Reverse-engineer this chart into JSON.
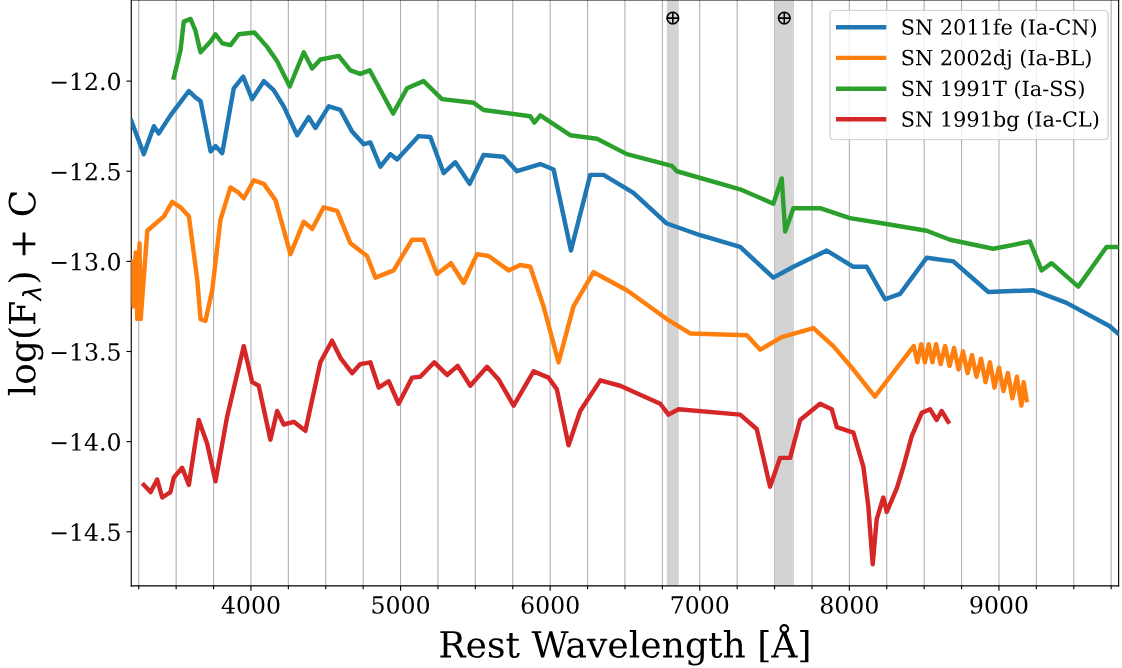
{
  "chart_data": {
    "type": "line",
    "xlabel": "Rest Wavelength [Å]",
    "ylabel": "log(F$_{λ}$) + C",
    "xlim": [
      3200,
      9800
    ],
    "ylim": [
      -14.8,
      -11.55
    ],
    "xticks": [
      {
        "value": 3250,
        "label": null
      },
      {
        "value": 3500,
        "label": null
      },
      {
        "value": 3750,
        "label": null
      },
      4000,
      {
        "value": 4250,
        "label": null
      },
      {
        "value": 4500,
        "label": null
      },
      {
        "value": 4750,
        "label": null
      },
      5000,
      {
        "value": 5250,
        "label": null
      },
      {
        "value": 5500,
        "label": null
      },
      {
        "value": 5750,
        "label": null
      },
      6000,
      {
        "value": 6250,
        "label": null
      },
      {
        "value": 6500,
        "label": null
      },
      {
        "value": 6750,
        "label": null
      },
      7000,
      {
        "value": 7250,
        "label": null
      },
      {
        "value": 7500,
        "label": null
      },
      {
        "value": 7750,
        "label": null
      },
      8000,
      {
        "value": 8250,
        "label": null
      },
      {
        "value": 8500,
        "label": null
      },
      {
        "value": 8750,
        "label": null
      },
      9000,
      {
        "value": 9250,
        "label": null
      },
      {
        "value": 9500,
        "label": null
      },
      {
        "value": 9750,
        "label": null
      }
    ],
    "yticks": [
      {
        "value": -12.0,
        "label": "−12.0"
      },
      {
        "value": -12.5,
        "label": "−12.5"
      },
      {
        "value": -13.0,
        "label": "−13.0"
      },
      {
        "value": -13.5,
        "label": "−13.5"
      },
      {
        "value": -14.0,
        "label": "−14.0"
      },
      {
        "value": -14.5,
        "label": "−14.5"
      }
    ],
    "grid": "x",
    "legend": "top right",
    "marker": "none",
    "line_style": "solid",
    "bands": [
      {
        "axis": "x",
        "from": 6780,
        "to": 6860,
        "label": "⊕",
        "color": "#d3d3d3"
      },
      {
        "axis": "x",
        "from": 7500,
        "to": 7630,
        "label": "⊕",
        "color": "#d3d3d3"
      }
    ],
    "series": [
      {
        "name": "SN 2011fe (Ia-CN)",
        "color": "#1f77b4",
        "x": [
          3200,
          3284,
          3351,
          3384,
          3462,
          3585,
          3629,
          3663,
          3730,
          3763,
          3808,
          3885,
          3948,
          4008,
          4086,
          4152,
          4219,
          4309,
          4386,
          4431,
          4520,
          4598,
          4676,
          4754,
          4798,
          4865,
          4932,
          4977,
          5121,
          5199,
          5288,
          5366,
          5462,
          5555,
          5689,
          5778,
          5934,
          6023,
          6139,
          6268,
          6357,
          6557,
          6780,
          7003,
          7270,
          7492,
          7626,
          7849,
          8027,
          8116,
          8239,
          8339,
          8517,
          8695,
          8929,
          9229,
          9452,
          9741,
          9795
        ],
        "values": [
          -12.22,
          -12.405,
          -12.25,
          -12.29,
          -12.19,
          -12.055,
          -12.09,
          -12.11,
          -12.39,
          -12.36,
          -12.4,
          -12.04,
          -11.975,
          -12.1,
          -12.0,
          -12.05,
          -12.14,
          -12.3,
          -12.2,
          -12.26,
          -12.14,
          -12.16,
          -12.28,
          -12.35,
          -12.34,
          -12.475,
          -12.405,
          -12.435,
          -12.305,
          -12.31,
          -12.51,
          -12.45,
          -12.57,
          -12.41,
          -12.42,
          -12.5,
          -12.46,
          -12.49,
          -12.94,
          -12.52,
          -12.52,
          -12.62,
          -12.79,
          -12.855,
          -12.92,
          -13.09,
          -13.03,
          -12.94,
          -13.03,
          -13.03,
          -13.21,
          -13.18,
          -12.98,
          -13.0,
          -13.17,
          -13.16,
          -13.23,
          -13.36,
          -13.4
        ]
      },
      {
        "name": "SN 2002dj (Ia-BL)",
        "color": "#ff7f0e",
        "x": [
          3200,
          3215,
          3230,
          3240,
          3255,
          3263,
          3307,
          3418,
          3474,
          3529,
          3585,
          3641,
          3663,
          3696,
          3741,
          3796,
          3863,
          3919,
          3952,
          4019,
          4086,
          4164,
          4264,
          4353,
          4409,
          4486,
          4576,
          4665,
          4776,
          4832,
          4954,
          5077,
          5154,
          5244,
          5337,
          5422,
          5511,
          5589,
          5722,
          5800,
          5867,
          5956,
          6056,
          6156,
          6290,
          6513,
          6780,
          6936,
          7315,
          7404,
          7548,
          7760,
          7893,
          8027,
          8171,
          8272,
          8430,
          8455,
          8480,
          8505,
          8530,
          8555,
          8580,
          8610,
          8640,
          8670,
          8700,
          8730,
          8760,
          8790,
          8820,
          8850,
          8880,
          8910,
          8940,
          8970,
          9000,
          9030,
          9060,
          9090,
          9120,
          9150,
          9165,
          9185
        ],
        "values": [
          -13.0,
          -13.25,
          -12.95,
          -13.32,
          -12.9,
          -13.32,
          -12.83,
          -12.75,
          -12.67,
          -12.7,
          -12.75,
          -13.1,
          -13.32,
          -13.33,
          -13.16,
          -12.77,
          -12.59,
          -12.62,
          -12.65,
          -12.55,
          -12.57,
          -12.66,
          -12.96,
          -12.78,
          -12.82,
          -12.7,
          -12.72,
          -12.9,
          -12.97,
          -13.09,
          -13.05,
          -12.88,
          -12.88,
          -13.07,
          -13.01,
          -13.12,
          -12.96,
          -12.97,
          -13.05,
          -13.02,
          -13.03,
          -13.25,
          -13.56,
          -13.25,
          -13.06,
          -13.16,
          -13.32,
          -13.4,
          -13.41,
          -13.49,
          -13.42,
          -13.37,
          -13.47,
          -13.6,
          -13.75,
          -13.64,
          -13.47,
          -13.56,
          -13.46,
          -13.56,
          -13.46,
          -13.56,
          -13.46,
          -13.57,
          -13.47,
          -13.58,
          -13.48,
          -13.6,
          -13.5,
          -13.62,
          -13.52,
          -13.64,
          -13.54,
          -13.67,
          -13.56,
          -13.7,
          -13.59,
          -13.72,
          -13.62,
          -13.76,
          -13.64,
          -13.8,
          -13.67,
          -13.77
        ]
      },
      {
        "name": "SN 1991T (Ia-SS)",
        "color": "#2ca02c",
        "x": [
          3484,
          3529,
          3551,
          3596,
          3629,
          3663,
          3730,
          3763,
          3808,
          3863,
          3919,
          4023,
          4108,
          4175,
          4259,
          4353,
          4409,
          4464,
          4587,
          4665,
          4731,
          4794,
          4950,
          5043,
          5154,
          5277,
          5488,
          5555,
          5867,
          5894,
          5934,
          6134,
          6313,
          6513,
          6813,
          6847,
          7270,
          7492,
          7548,
          7571,
          7626,
          7804,
          8004,
          8227,
          8517,
          8673,
          8962,
          9207,
          9285,
          9352,
          9530,
          9719,
          9795
        ],
        "values": [
          -11.98,
          -11.83,
          -11.67,
          -11.655,
          -11.72,
          -11.84,
          -11.78,
          -11.74,
          -11.79,
          -11.8,
          -11.74,
          -11.73,
          -11.81,
          -11.89,
          -12.03,
          -11.84,
          -11.93,
          -11.88,
          -11.86,
          -11.94,
          -11.96,
          -11.94,
          -12.18,
          -12.04,
          -12.0,
          -12.1,
          -12.12,
          -12.16,
          -12.195,
          -12.23,
          -12.19,
          -12.3,
          -12.32,
          -12.405,
          -12.47,
          -12.5,
          -12.6,
          -12.68,
          -12.54,
          -12.835,
          -12.705,
          -12.705,
          -12.76,
          -12.79,
          -12.83,
          -12.88,
          -12.93,
          -12.89,
          -13.05,
          -13.01,
          -13.14,
          -12.92,
          -12.92
        ]
      },
      {
        "name": "SN 1991bg (Ia-CL)",
        "color": "#d62728",
        "x": [
          3284,
          3329,
          3373,
          3407,
          3462,
          3484,
          3540,
          3585,
          3651,
          3707,
          3763,
          3841,
          3952,
          4008,
          4052,
          4130,
          4175,
          4219,
          4286,
          4364,
          4464,
          4542,
          4598,
          4676,
          4731,
          4798,
          4854,
          4921,
          4987,
          5077,
          5132,
          5226,
          5311,
          5382,
          5466,
          5578,
          5655,
          5756,
          5889,
          5989,
          6045,
          6123,
          6201,
          6335,
          6468,
          6736,
          6791,
          6858,
          7270,
          7381,
          7470,
          7537,
          7604,
          7671,
          7804,
          7882,
          7916,
          8027,
          8094,
          8127,
          8156,
          8183,
          8227,
          8250,
          8317,
          8361,
          8417,
          8484,
          8539,
          8584,
          8617,
          8661
        ],
        "values": [
          -14.24,
          -14.28,
          -14.21,
          -14.31,
          -14.28,
          -14.2,
          -14.145,
          -14.24,
          -13.88,
          -14.01,
          -14.22,
          -13.86,
          -13.47,
          -13.67,
          -13.69,
          -13.99,
          -13.83,
          -13.905,
          -13.89,
          -13.94,
          -13.56,
          -13.44,
          -13.535,
          -13.62,
          -13.57,
          -13.56,
          -13.7,
          -13.665,
          -13.79,
          -13.645,
          -13.64,
          -13.56,
          -13.63,
          -13.58,
          -13.69,
          -13.585,
          -13.655,
          -13.8,
          -13.61,
          -13.645,
          -13.71,
          -14.02,
          -13.83,
          -13.66,
          -13.69,
          -13.79,
          -13.85,
          -13.82,
          -13.85,
          -13.93,
          -14.25,
          -14.09,
          -14.09,
          -13.88,
          -13.79,
          -13.82,
          -13.92,
          -13.95,
          -14.14,
          -14.36,
          -14.68,
          -14.43,
          -14.31,
          -14.39,
          -14.26,
          -14.14,
          -13.97,
          -13.84,
          -13.82,
          -13.88,
          -13.83,
          -13.89
        ]
      }
    ]
  }
}
